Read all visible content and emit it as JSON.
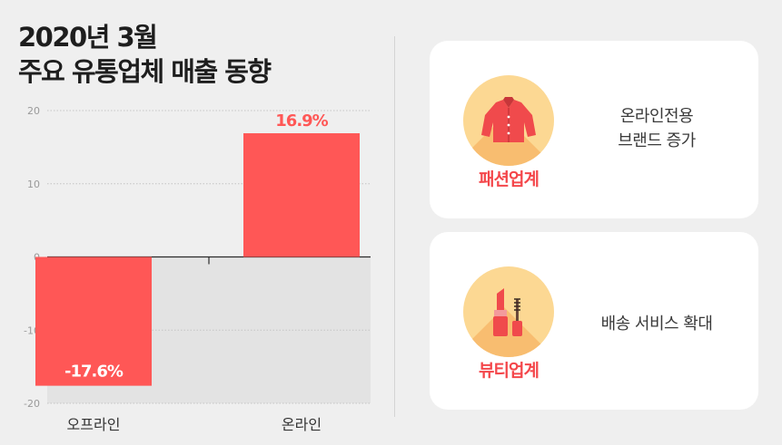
{
  "title": {
    "line1": "2020년 3월",
    "line2": "주요 유통업체 매출 동향"
  },
  "chart_data": {
    "type": "bar",
    "categories": [
      "오프라인",
      "온라인"
    ],
    "values": [
      -17.6,
      16.9
    ],
    "value_labels": [
      "-17.6%",
      "16.9%"
    ],
    "ylim": [
      -20,
      20
    ],
    "yticks": [
      20,
      10,
      0,
      -10,
      -20
    ],
    "xlabel": "",
    "ylabel": "",
    "grid": true,
    "colors": {
      "bar": "#ff5756",
      "label_positive": "#ff5756",
      "label_negative": "#ffffff",
      "negative_area": "#e3e3e3"
    }
  },
  "cards": [
    {
      "category": "패션업계",
      "icon": "jacket-icon",
      "description_lines": [
        "온라인전용",
        "브랜드 증가"
      ]
    },
    {
      "category": "뷰티업계",
      "icon": "lipstick-mascara-icon",
      "description_lines": [
        "배송 서비스 확대"
      ]
    }
  ],
  "colors": {
    "background": "#efefef",
    "accent": "#f4474b",
    "icon_circle": "#fcd893"
  }
}
